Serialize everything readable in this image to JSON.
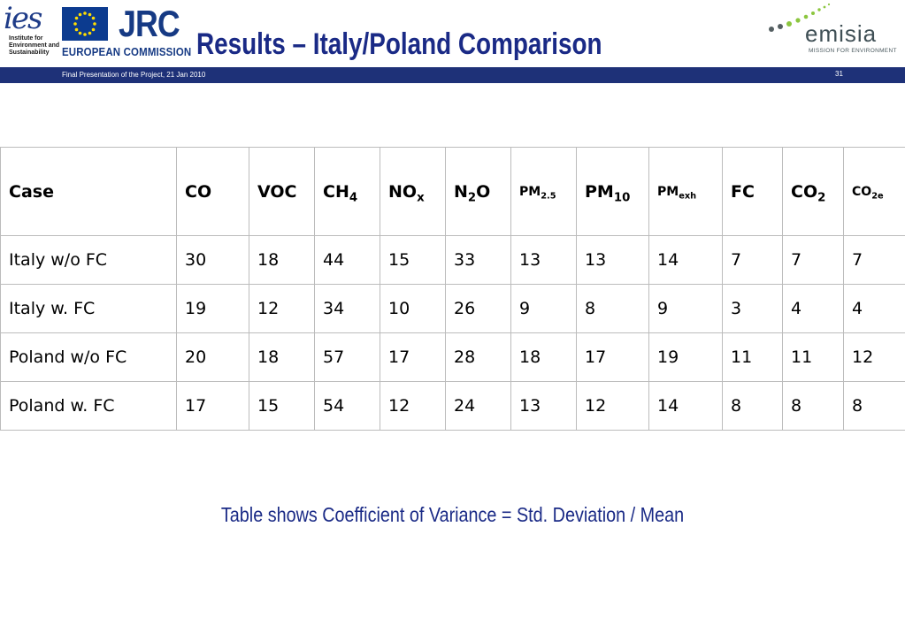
{
  "header": {
    "ies_logo_text": "ies",
    "ies_logo_sub": "Institute for\nEnvironment and\nSustainability",
    "jrc_logo_text": "JRC",
    "ec_logo_text": "EUROPEAN COMMISSION",
    "title": "Results – Italy/Poland Comparison",
    "emisia_logo_text": "emisia",
    "emisia_tagline": "MISSION FOR ENVIRONMENT",
    "bar_subtitle": "Final Presentation of the Project, 21 Jan 2010",
    "slide_number": "31"
  },
  "table": {
    "headers": [
      {
        "base": "Case",
        "sub": ""
      },
      {
        "base": "CO",
        "sub": ""
      },
      {
        "base": "VOC",
        "sub": ""
      },
      {
        "base": "CH",
        "sub": "4"
      },
      {
        "base": "NO",
        "sub": "x"
      },
      {
        "base": "N",
        "sub": "2",
        "tail": "O"
      },
      {
        "base": "PM",
        "sub": "2.5"
      },
      {
        "base": "PM",
        "sub": "10"
      },
      {
        "base": "PM",
        "sub": "exh"
      },
      {
        "base": "FC",
        "sub": ""
      },
      {
        "base": "CO",
        "sub": "2"
      },
      {
        "base": "CO",
        "sub": "2e"
      }
    ],
    "rows": [
      [
        "Italy w/o FC",
        "30",
        "18",
        "44",
        "15",
        "33",
        "13",
        "13",
        "14",
        "7",
        "7",
        "7"
      ],
      [
        "Italy w. FC",
        "19",
        "12",
        "34",
        "10",
        "26",
        "9",
        "8",
        "9",
        "3",
        "4",
        "4"
      ],
      [
        "Poland w/o FC",
        "20",
        "18",
        "57",
        "17",
        "28",
        "18",
        "17",
        "19",
        "11",
        "11",
        "12"
      ],
      [
        "Poland w. FC",
        "17",
        "15",
        "54",
        "12",
        "24",
        "13",
        "12",
        "14",
        "8",
        "8",
        "8"
      ]
    ]
  },
  "caption": "Table shows Coefficient of Variance = Std. Deviation / Mean",
  "colors": {
    "title_blue": "#1a2a86",
    "bar_blue": "#1e3178",
    "eu_flag_blue": "#0c3b8f",
    "eu_star_yellow": "#ffdd00",
    "emisia_green": "#8cc63f"
  }
}
